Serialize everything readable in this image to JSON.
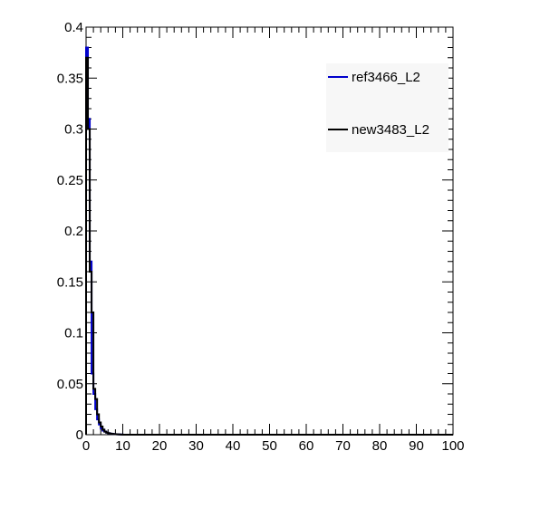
{
  "chart_data": {
    "type": "line",
    "title": "",
    "xlabel": "",
    "ylabel": "",
    "xlim": [
      0,
      100
    ],
    "ylim": [
      0,
      0.4
    ],
    "grid": false,
    "legend_position": "top-right",
    "x_ticks": [
      0,
      10,
      20,
      30,
      40,
      50,
      60,
      70,
      80,
      90,
      100
    ],
    "x_tick_labels": [
      "0",
      "10",
      "20",
      "30",
      "40",
      "50",
      "60",
      "70",
      "80",
      "90",
      "100"
    ],
    "y_ticks": [
      0,
      0.05,
      0.1,
      0.15,
      0.2,
      0.25,
      0.3,
      0.35,
      0.4
    ],
    "y_tick_labels": [
      "0",
      "0.05",
      "0.1",
      "0.15",
      "0.2",
      "0.25",
      "0.3",
      "0.35",
      "0.4"
    ],
    "bin_width": 0.5,
    "series": [
      {
        "name": "ref3466_L2",
        "color": "#0000cc",
        "bins_start": 0,
        "values": [
          0.38,
          0.31,
          0.17,
          0.06,
          0.04,
          0.025,
          0.015,
          0.01,
          0.006,
          0.004,
          0.003,
          0.002,
          0.0015,
          0.001,
          0.0008,
          0.0006,
          0.0004,
          0.0003,
          0.0002,
          0.0001
        ]
      },
      {
        "name": "new3483_L2",
        "color": "#000000",
        "bins_start": 0,
        "values": [
          0.37,
          0.3,
          0.16,
          0.12,
          0.045,
          0.035,
          0.02,
          0.012,
          0.008,
          0.005,
          0.003,
          0.002,
          0.0015,
          0.001,
          0.0008,
          0.0006,
          0.0004,
          0.0003,
          0.0002,
          0.0001
        ]
      }
    ]
  }
}
